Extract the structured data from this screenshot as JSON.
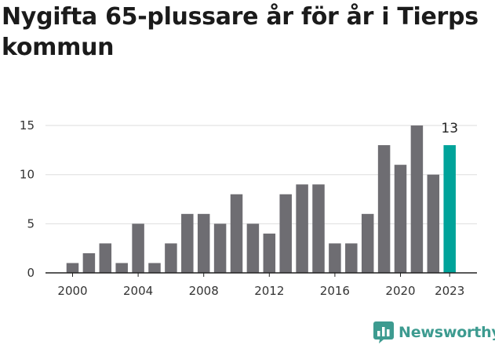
{
  "chart_data": {
    "type": "bar",
    "title": "Nygifta 65-plussare år för år i Tierps kommun",
    "xlabel": "",
    "ylabel": "",
    "ylim": [
      0,
      16
    ],
    "yticks": [
      0,
      5,
      10,
      15
    ],
    "xtick_labels": [
      "2000",
      "2004",
      "2008",
      "2012",
      "2016",
      "2020",
      "2023"
    ],
    "grid": true,
    "categories": [
      2000,
      2001,
      2002,
      2003,
      2004,
      2005,
      2006,
      2007,
      2008,
      2009,
      2010,
      2011,
      2012,
      2013,
      2014,
      2015,
      2016,
      2017,
      2018,
      2019,
      2020,
      2021,
      2022,
      2023
    ],
    "values": [
      1,
      2,
      3,
      1,
      5,
      1,
      3,
      6,
      6,
      5,
      8,
      5,
      4,
      8,
      9,
      9,
      3,
      3,
      6,
      13,
      11,
      15,
      10,
      13
    ],
    "highlight_category": 2023,
    "highlight_label": "13",
    "colors": {
      "bar": "#6e6d72",
      "highlight": "#00a39a",
      "grid": "#dddddd",
      "axis": "#222222"
    }
  },
  "brand": {
    "name": "Newsworthy",
    "icon": "bar-chart-speech-icon",
    "color": "#3d9b90"
  }
}
